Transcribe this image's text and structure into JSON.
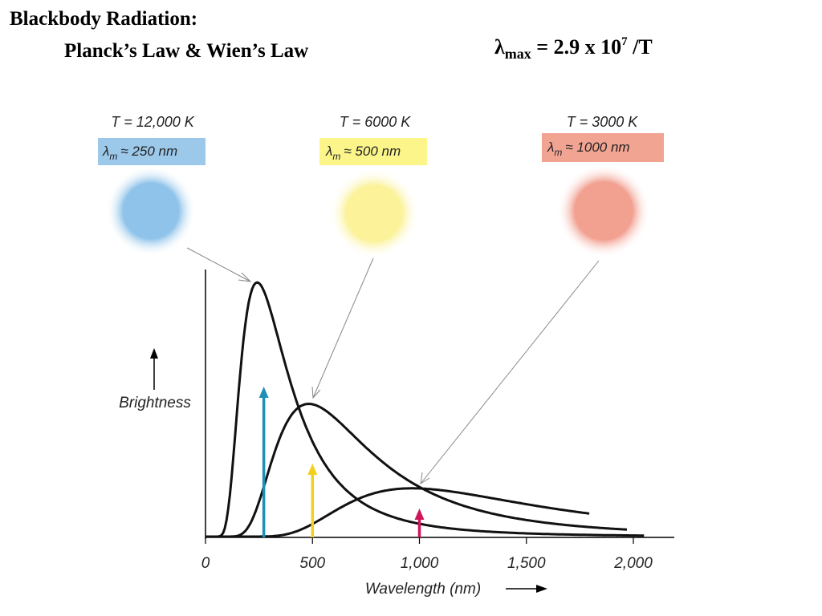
{
  "title": {
    "line1": "Blackbody Radiation:",
    "line2": "Planck’s Law & Wien’s Law"
  },
  "formula": {
    "lambda": "λ",
    "subscript": "max",
    "middle": " =  2.9 x 10",
    "exponent": "7",
    "tail": " /T"
  },
  "stars": [
    {
      "temp_label": "T = 12,000 K",
      "lambda_symbol": "λ",
      "lambda_sub": "m",
      "lambda_value": "≈ 250 nm",
      "color": "#8fc3ea",
      "box_color": "#9cc8ea"
    },
    {
      "temp_label": "T = 6000 K",
      "lambda_symbol": "λ",
      "lambda_sub": "m",
      "lambda_value": "≈ 500 nm",
      "color": "#fbf29a",
      "box_color": "#fbf58a"
    },
    {
      "temp_label": "T = 3000 K",
      "lambda_symbol": "λ",
      "lambda_sub": "m",
      "lambda_value": "≈ 1000 nm",
      "color": "#f2a090",
      "box_color": "#f2a493"
    }
  ],
  "chart_data": {
    "type": "line",
    "xlabel": "Wavelength (nm)",
    "ylabel": "Brightness",
    "xlim": [
      0,
      2100
    ],
    "x_ticks": [
      "0",
      "500",
      "1,000",
      "1,500",
      "2,000"
    ],
    "x_tick_values": [
      0,
      500,
      1000,
      1500,
      2000
    ],
    "series": [
      {
        "temperature_K": 12000,
        "peak_nm": 250,
        "arrow_color": "#1f8fb6"
      },
      {
        "temperature_K": 6000,
        "peak_nm": 500,
        "arrow_color": "#f3d01c"
      },
      {
        "temperature_K": 3000,
        "peak_nm": 1000,
        "arrow_color": "#d0155a"
      }
    ],
    "grid": false
  }
}
